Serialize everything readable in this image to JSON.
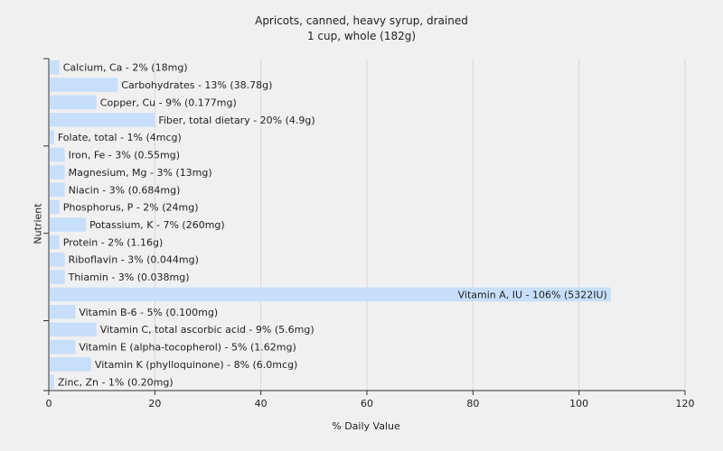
{
  "chart_data": {
    "type": "bar",
    "orientation": "horizontal",
    "title": "Apricots, canned, heavy syrup, drained",
    "subtitle": "1 cup, whole (182g)",
    "xlabel": "% Daily Value",
    "ylabel": "Nutrient",
    "xlim": [
      0,
      120
    ],
    "xticks": [
      0,
      20,
      40,
      60,
      80,
      100,
      120
    ],
    "grid": true,
    "bar_color": "#c7dffb",
    "categories": [
      "Calcium, Ca",
      "Carbohydrates",
      "Copper, Cu",
      "Fiber, total dietary",
      "Folate, total",
      "Iron, Fe",
      "Magnesium, Mg",
      "Niacin",
      "Phosphorus, P",
      "Potassium, K",
      "Protein",
      "Riboflavin",
      "Thiamin",
      "Vitamin A, IU",
      "Vitamin B-6",
      "Vitamin C, total ascorbic acid",
      "Vitamin E (alpha-tocopherol)",
      "Vitamin K (phylloquinone)",
      "Zinc, Zn"
    ],
    "values": [
      2,
      13,
      9,
      20,
      1,
      3,
      3,
      3,
      2,
      7,
      2,
      3,
      3,
      106,
      5,
      9,
      5,
      8,
      1
    ],
    "labels": [
      "Calcium, Ca - 2% (18mg)",
      "Carbohydrates - 13% (38.78g)",
      "Copper, Cu - 9% (0.177mg)",
      "Fiber, total dietary - 20% (4.9g)",
      "Folate, total - 1% (4mcg)",
      "Iron, Fe - 3% (0.55mg)",
      "Magnesium, Mg - 3% (13mg)",
      "Niacin - 3% (0.684mg)",
      "Phosphorus, P - 2% (24mg)",
      "Potassium, K - 7% (260mg)",
      "Protein - 2% (1.16g)",
      "Riboflavin - 3% (0.044mg)",
      "Thiamin - 3% (0.038mg)",
      "Vitamin A, IU - 106% (5322IU)",
      "Vitamin B-6 - 5% (0.100mg)",
      "Vitamin C, total ascorbic acid - 9% (5.6mg)",
      "Vitamin E (alpha-tocopherol) - 5% (1.62mg)",
      "Vitamin K (phylloquinone) - 8% (6.0mcg)",
      "Zinc, Zn - 1% (0.20mg)"
    ]
  }
}
